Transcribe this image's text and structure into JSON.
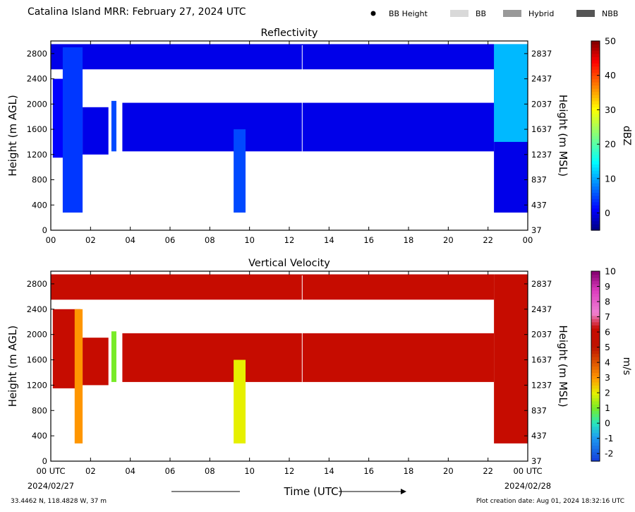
{
  "title": "Catalina Island MRR:  February 27, 2024 UTC",
  "legend": [
    {
      "label": "BB Height",
      "kind": "dot",
      "color": "#000000"
    },
    {
      "label": "BB",
      "kind": "patch",
      "color": "#d9d9d9"
    },
    {
      "label": "Hybrid",
      "kind": "patch",
      "color": "#999999"
    },
    {
      "label": "NBB",
      "kind": "patch",
      "color": "#555555"
    }
  ],
  "footer": {
    "location": "33.4462 N, 118.4828 W, 37 m",
    "creation": "Plot creation date: Aug 01, 2024 18:32:16 UTC"
  },
  "chart_data": [
    {
      "type": "heatmap",
      "title": "Reflectivity",
      "ylabel": "Height (m AGL)",
      "ylabel_right": "Height (m MSL)",
      "xlim": [
        0,
        24
      ],
      "ylim": [
        0,
        3000
      ],
      "xticks": [
        "00",
        "02",
        "04",
        "06",
        "08",
        "10",
        "12",
        "14",
        "16",
        "18",
        "20",
        "22",
        "00"
      ],
      "yticks_left": [
        "0",
        "400",
        "800",
        "1200",
        "1600",
        "2000",
        "2400",
        "2800"
      ],
      "yticks_right": [
        "37",
        "437",
        "837",
        "1237",
        "1637",
        "2037",
        "2437",
        "2837"
      ],
      "colorbar": {
        "label": "dBZ",
        "range": [
          -5,
          50
        ],
        "ticks": [
          "0",
          "10",
          "20",
          "30",
          "40",
          "50"
        ]
      },
      "layers": [
        {
          "name": "upper-layer",
          "t0": 0.0,
          "t1": 22.3,
          "h0": 2550,
          "h1": 2950,
          "value": 0
        },
        {
          "name": "mid-layer-a",
          "t0": 1.6,
          "t1": 2.9,
          "h0": 1200,
          "h1": 1950,
          "value": 0
        },
        {
          "name": "mid-layer-b",
          "t0": 3.6,
          "t1": 22.3,
          "h0": 1250,
          "h1": 2020,
          "value": 0
        },
        {
          "name": "mid-layer-c",
          "t0": 0.1,
          "t1": 1.5,
          "h0": 1150,
          "h1": 2400,
          "value": 1
        },
        {
          "name": "shaft-1",
          "t0": 0.6,
          "t1": 1.6,
          "h0": 280,
          "h1": 2900,
          "value": 4
        },
        {
          "name": "shaft-2",
          "t0": 9.2,
          "t1": 9.8,
          "h0": 280,
          "h1": 1600,
          "value": 5
        },
        {
          "name": "shaft-3",
          "t0": 3.05,
          "t1": 3.3,
          "h0": 1250,
          "h1": 2050,
          "value": 5
        },
        {
          "name": "late-rain",
          "t0": 22.3,
          "t1": 24.0,
          "h0": 280,
          "h1": 2950,
          "value": 0
        },
        {
          "name": "late-top",
          "t0": 22.3,
          "t1": 24.0,
          "h0": 1400,
          "h1": 2950,
          "value": 11
        }
      ]
    },
    {
      "type": "heatmap",
      "title": "Vertical Velocity",
      "ylabel": "Height (m AGL)",
      "ylabel_right": "Height (m MSL)",
      "xlabel": "Time (UTC)",
      "xlim": [
        0,
        24
      ],
      "ylim": [
        0,
        3000
      ],
      "xticks": [
        "00 UTC",
        "02",
        "04",
        "06",
        "08",
        "10",
        "12",
        "14",
        "16",
        "18",
        "20",
        "22",
        "00 UTC"
      ],
      "xdates": [
        "2024/02/27",
        "2024/02/28"
      ],
      "yticks_left": [
        "0",
        "400",
        "800",
        "1200",
        "1600",
        "2000",
        "2400",
        "2800"
      ],
      "yticks_right": [
        "37",
        "437",
        "837",
        "1237",
        "1637",
        "2037",
        "2437",
        "2837"
      ],
      "colorbar": {
        "label": "m/s",
        "range": [
          -2.5,
          10
        ],
        "ticks": [
          "-2",
          "-1",
          "0",
          "1",
          "2",
          "3",
          "4",
          "5",
          "6",
          "7",
          "8",
          "9",
          "10"
        ]
      },
      "layers": [
        {
          "name": "upper-layer",
          "t0": 0.0,
          "t1": 22.3,
          "h0": 2550,
          "h1": 2950,
          "value": 6
        },
        {
          "name": "mid-layer-a",
          "t0": 1.6,
          "t1": 2.9,
          "h0": 1200,
          "h1": 1950,
          "value": 6
        },
        {
          "name": "mid-layer-b",
          "t0": 3.6,
          "t1": 22.3,
          "h0": 1250,
          "h1": 2020,
          "value": 6
        },
        {
          "name": "mid-layer-c",
          "t0": 0.1,
          "t1": 1.5,
          "h0": 1150,
          "h1": 2400,
          "value": 6
        },
        {
          "name": "shaft-1",
          "t0": 1.2,
          "t1": 1.6,
          "h0": 280,
          "h1": 2400,
          "value": 3
        },
        {
          "name": "shaft-2",
          "t0": 9.2,
          "t1": 9.8,
          "h0": 280,
          "h1": 1600,
          "value": 2
        },
        {
          "name": "shaft-3",
          "t0": 3.05,
          "t1": 3.3,
          "h0": 1250,
          "h1": 2050,
          "value": 1
        },
        {
          "name": "late-rain",
          "t0": 22.3,
          "t1": 24.0,
          "h0": 280,
          "h1": 2950,
          "value": 6
        }
      ]
    }
  ]
}
